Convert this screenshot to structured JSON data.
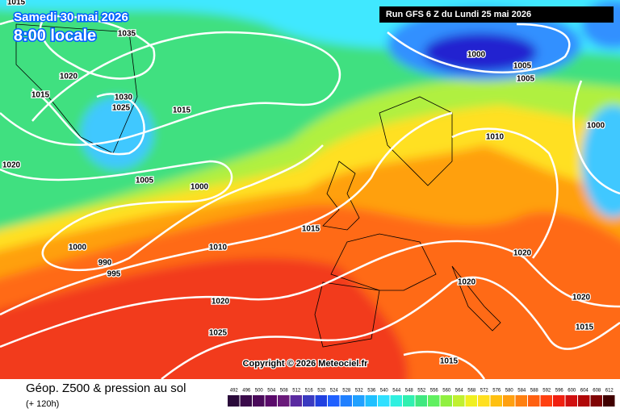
{
  "header": {
    "date": "Samedi 30 mai 2026",
    "time": "8:00 locale",
    "run": "Run GFS 6 Z du Lundi 25 mai 2026"
  },
  "isobar_labels": [
    "1015",
    "1035",
    "1020",
    "1015",
    "1030",
    "1025",
    "1015",
    "1020",
    "1005",
    "1000",
    "1000",
    "990",
    "995",
    "1015",
    "1010",
    "1020",
    "1025",
    "1000",
    "1005",
    "1005",
    "1000",
    "1010",
    "1020",
    "1020",
    "1020",
    "1015",
    "1015"
  ],
  "copyright": "Copyright © 2026 Meteociel.fr",
  "footer": {
    "title": "Géop. Z500 & pression au sol",
    "lead": "(+ 120h)"
  },
  "legend": {
    "values": [
      "492",
      "496",
      "500",
      "504",
      "508",
      "512",
      "516",
      "520",
      "524",
      "528",
      "532",
      "536",
      "540",
      "544",
      "548",
      "552",
      "556",
      "560",
      "564",
      "568",
      "572",
      "576",
      "580",
      "584",
      "588",
      "592",
      "596",
      "600",
      "604",
      "608",
      "612"
    ],
    "colors": [
      "#2a0a3a",
      "#3a0a4a",
      "#4a0a5a",
      "#5a0a6a",
      "#6a1a7a",
      "#5a2aa0",
      "#3a3ac0",
      "#2040e0",
      "#2060ff",
      "#2080ff",
      "#20a0ff",
      "#20c0ff",
      "#30e0ff",
      "#30f0e0",
      "#30f0b0",
      "#40e880",
      "#60f060",
      "#90f040",
      "#c0f030",
      "#f0f020",
      "#ffe020",
      "#ffc010",
      "#ffa010",
      "#ff8010",
      "#ff6010",
      "#ff4010",
      "#f02010",
      "#d01010",
      "#b00808",
      "#800404",
      "#400000"
    ]
  }
}
